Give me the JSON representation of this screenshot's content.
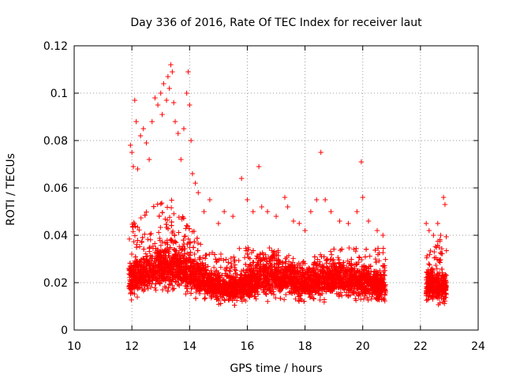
{
  "chart_data": {
    "type": "scatter",
    "title": "Day 336 of 2016, Rate Of TEC Index for receiver laut",
    "xlabel": "GPS time / hours",
    "ylabel": "ROTI / TECUs",
    "xlim": [
      10,
      24
    ],
    "ylim": [
      0,
      0.12
    ],
    "xticks": [
      10,
      12,
      14,
      16,
      18,
      20,
      22,
      24
    ],
    "yticks": [
      0,
      0.02,
      0.04,
      0.06,
      0.08,
      0.1,
      0.12
    ],
    "xtick_labels": [
      "10",
      "12",
      "14",
      "16",
      "18",
      "20",
      "22",
      "24"
    ],
    "ytick_labels": [
      "0",
      "0.02",
      "0.04",
      "0.06",
      "0.08",
      "0.1",
      "0.12"
    ],
    "grid": true,
    "marker": "+",
    "color": "#ff0000",
    "series": [
      {
        "name": "ROTI",
        "segments": [
          {
            "x_start": 11.9,
            "x_end": 20.8,
            "typical_range": [
              0.005,
              0.035
            ]
          },
          {
            "x_start": 22.2,
            "x_end": 22.9,
            "typical_range": [
              0.005,
              0.035
            ]
          }
        ],
        "x": [
          11.95,
          12.0,
          12.05,
          12.1,
          12.15,
          12.2,
          12.3,
          12.4,
          12.5,
          12.6,
          12.7,
          12.8,
          12.9,
          13.0,
          13.05,
          13.1,
          13.2,
          13.25,
          13.3,
          13.35,
          13.4,
          13.45,
          13.5,
          13.6,
          13.7,
          13.8,
          13.9,
          13.95,
          14.0,
          14.05,
          14.1,
          14.2,
          14.3,
          14.5,
          14.7,
          15.0,
          15.2,
          15.5,
          15.8,
          16.0,
          16.2,
          16.4,
          16.5,
          16.7,
          17.0,
          17.3,
          17.4,
          17.6,
          17.8,
          18.0,
          18.2,
          18.4,
          18.55,
          18.7,
          18.9,
          19.2,
          19.5,
          19.8,
          19.95,
          20.0,
          20.2,
          20.5,
          20.7,
          22.2,
          22.3,
          22.45,
          22.6,
          22.7,
          22.8,
          22.85
        ],
        "y": [
          0.078,
          0.075,
          0.069,
          0.097,
          0.088,
          0.068,
          0.082,
          0.085,
          0.079,
          0.072,
          0.088,
          0.098,
          0.095,
          0.1,
          0.091,
          0.104,
          0.097,
          0.107,
          0.102,
          0.112,
          0.109,
          0.096,
          0.088,
          0.083,
          0.072,
          0.085,
          0.1,
          0.109,
          0.095,
          0.08,
          0.066,
          0.062,
          0.058,
          0.05,
          0.055,
          0.045,
          0.05,
          0.048,
          0.064,
          0.055,
          0.05,
          0.069,
          0.052,
          0.05,
          0.048,
          0.056,
          0.052,
          0.046,
          0.045,
          0.042,
          0.05,
          0.055,
          0.075,
          0.055,
          0.05,
          0.046,
          0.045,
          0.05,
          0.071,
          0.056,
          0.046,
          0.042,
          0.04,
          0.045,
          0.042,
          0.04,
          0.045,
          0.04,
          0.056,
          0.053
        ],
        "bulk_summary": {
          "x": [
            12.0,
            12.5,
            13.0,
            13.5,
            14.0,
            14.5,
            15.0,
            15.5,
            16.0,
            16.5,
            17.0,
            17.5,
            18.0,
            18.5,
            19.0,
            19.5,
            20.0,
            20.5,
            22.3,
            22.6,
            22.8
          ],
          "y_median": [
            0.018,
            0.02,
            0.022,
            0.022,
            0.02,
            0.017,
            0.015,
            0.015,
            0.016,
            0.018,
            0.018,
            0.018,
            0.016,
            0.017,
            0.018,
            0.018,
            0.017,
            0.016,
            0.016,
            0.015,
            0.015
          ],
          "y_low": [
            0.008,
            0.008,
            0.008,
            0.008,
            0.008,
            0.007,
            0.006,
            0.006,
            0.006,
            0.005,
            0.006,
            0.006,
            0.006,
            0.006,
            0.007,
            0.007,
            0.006,
            0.006,
            0.006,
            0.005,
            0.005
          ],
          "y_high": [
            0.045,
            0.05,
            0.055,
            0.055,
            0.045,
            0.035,
            0.032,
            0.035,
            0.038,
            0.035,
            0.035,
            0.03,
            0.03,
            0.032,
            0.035,
            0.035,
            0.035,
            0.035,
            0.035,
            0.04,
            0.04
          ]
        }
      }
    ]
  }
}
